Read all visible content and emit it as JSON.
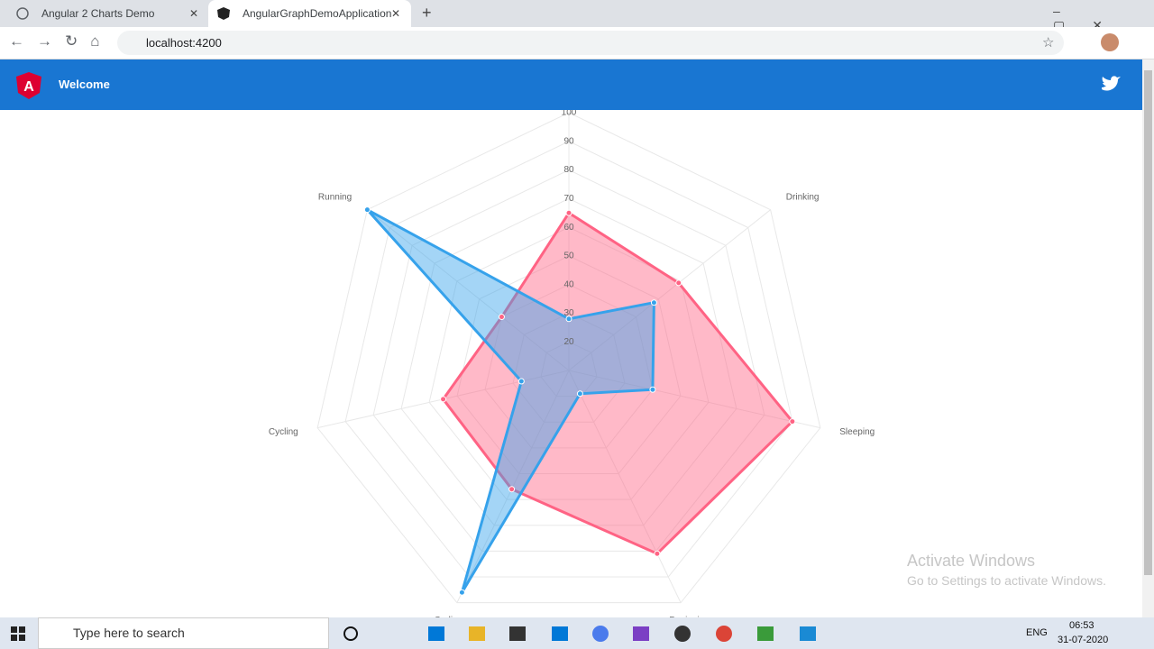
{
  "browser": {
    "tabs": [
      "Angular 2 Charts Demo",
      "AngularGraphDemoApplication"
    ],
    "url": "localhost:4200"
  },
  "app": {
    "header_title": "Welcome"
  },
  "chart_data": {
    "type": "radar",
    "categories": [
      null,
      "Drinking",
      "Sleeping",
      "Designing",
      "Coding",
      "Cycling",
      "Running"
    ],
    "series": [
      {
        "color": "#ff6384",
        "values": [
          65,
          59,
          90,
          81,
          56,
          55,
          40
        ]
      },
      {
        "color": "#36a2eb",
        "values": [
          28,
          48,
          40,
          19,
          96,
          27,
          100
        ]
      }
    ],
    "ylim": [
      10,
      100
    ],
    "yticks": [
      20,
      30,
      40,
      50,
      60,
      70,
      80,
      90,
      100
    ],
    "grid": true
  },
  "watermark": {
    "title": "Activate Windows",
    "subtitle": "Go to Settings to activate Windows."
  },
  "taskbar": {
    "search": "Type here to search",
    "language": "ENG",
    "time": "06:53",
    "date": "31-07-2020"
  }
}
